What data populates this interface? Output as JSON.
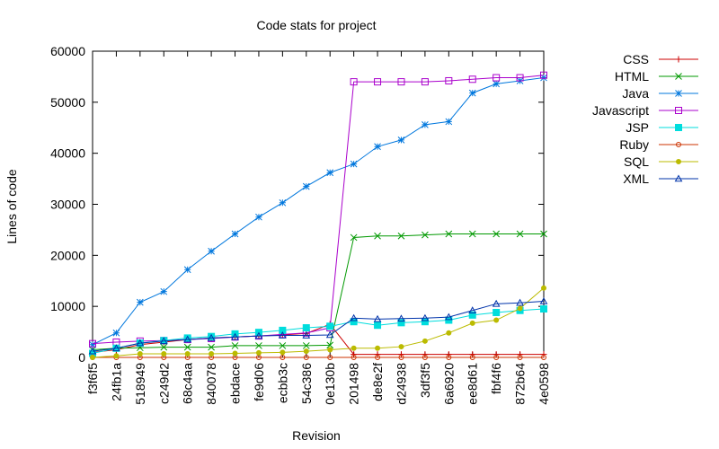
{
  "chart_data": {
    "type": "line",
    "title": "Code stats for project",
    "xlabel": "Revision",
    "ylabel": "Lines of code",
    "ylim": [
      0,
      60000
    ],
    "yticks": [
      0,
      10000,
      20000,
      30000,
      40000,
      50000,
      60000
    ],
    "grid": false,
    "legend_position": "right",
    "categories": [
      "f3f6f5",
      "24fb1a",
      "518949",
      "c249d2",
      "68c4aa",
      "840078",
      "ebdace",
      "fe9d06",
      "ecbb3c",
      "54c386",
      "0e130b",
      "201498",
      "de8e2f",
      "d24938",
      "3df3f5",
      "6a6920",
      "ee8d61",
      "fbf4f6",
      "872b64",
      "4e0598"
    ],
    "series": [
      {
        "name": "CSS",
        "color": "#cc0000",
        "marker": "plus",
        "values": [
          1000,
          1500,
          2500,
          3000,
          3500,
          3800,
          4000,
          4200,
          4400,
          4700,
          6500,
          600,
          600,
          600,
          600,
          600,
          600,
          600,
          600,
          600
        ]
      },
      {
        "name": "HTML",
        "color": "#009900",
        "marker": "cross",
        "values": [
          1500,
          1800,
          1900,
          2000,
          2000,
          2000,
          2300,
          2300,
          2300,
          2300,
          2400,
          23500,
          23800,
          23800,
          24000,
          24200,
          24200,
          24200,
          24200,
          24200
        ]
      },
      {
        "name": "Java",
        "color": "#0077dd",
        "marker": "star",
        "values": [
          2500,
          4800,
          10800,
          12900,
          17200,
          20800,
          24200,
          27500,
          30300,
          33500,
          36200,
          37900,
          41300,
          42600,
          45600,
          46200,
          51800,
          53600,
          54200,
          54800
        ]
      },
      {
        "name": "Javascript",
        "color": "#aa00cc",
        "marker": "square",
        "values": [
          2700,
          3000,
          3200,
          3300,
          3500,
          3700,
          4000,
          4200,
          4500,
          4800,
          5800,
          54000,
          54000,
          54000,
          54000,
          54200,
          54500,
          54800,
          54800,
          55300
        ]
      },
      {
        "name": "JSP",
        "color": "#00dddd",
        "marker": "filled-square",
        "values": [
          800,
          1800,
          2800,
          3300,
          3800,
          4100,
          4600,
          4900,
          5300,
          5800,
          6100,
          7000,
          6300,
          6800,
          7000,
          7300,
          8300,
          8800,
          9200,
          9500
        ]
      },
      {
        "name": "Ruby",
        "color": "#cc3300",
        "marker": "circle",
        "values": [
          0,
          0,
          0,
          0,
          0,
          0,
          0,
          0,
          0,
          0,
          0,
          0,
          0,
          0,
          0,
          0,
          0,
          0,
          0,
          0
        ]
      },
      {
        "name": "SQL",
        "color": "#bbbb00",
        "marker": "filled-circle",
        "values": [
          0,
          300,
          700,
          700,
          700,
          700,
          800,
          900,
          1000,
          1200,
          1500,
          1800,
          1800,
          2100,
          3200,
          4800,
          6700,
          7300,
          9600,
          13600
        ]
      },
      {
        "name": "XML",
        "color": "#0033aa",
        "marker": "triangle",
        "values": [
          1200,
          1800,
          2800,
          3200,
          3500,
          3800,
          4000,
          4200,
          4300,
          4300,
          4400,
          7700,
          7500,
          7600,
          7700,
          7900,
          9200,
          10500,
          10700,
          11000
        ]
      }
    ]
  }
}
